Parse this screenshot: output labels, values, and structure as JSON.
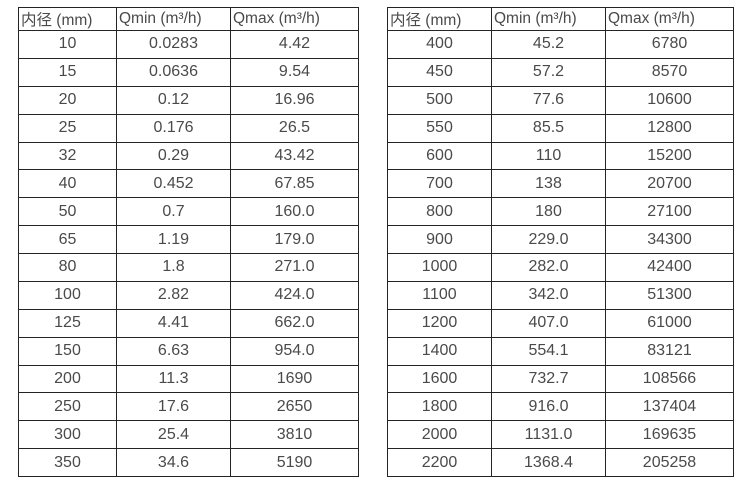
{
  "page": {
    "background_color": "#ffffff",
    "text_color": "#4a4a4a",
    "border_color": "#242424"
  },
  "tables": [
    {
      "name": "flow-rate-table-small-diameters",
      "headers": [
        "内径 (mm)",
        "Qmin (m³/h)",
        "Qmax (m³/h)"
      ],
      "rows": [
        [
          "10",
          "0.0283",
          "4.42"
        ],
        [
          "15",
          "0.0636",
          "9.54"
        ],
        [
          "20",
          "0.12",
          "16.96"
        ],
        [
          "25",
          "0.176",
          "26.5"
        ],
        [
          "32",
          "0.29",
          "43.42"
        ],
        [
          "40",
          "0.452",
          "67.85"
        ],
        [
          "50",
          "0.7",
          "160.0"
        ],
        [
          "65",
          "1.19",
          "179.0"
        ],
        [
          "80",
          "1.8",
          "271.0"
        ],
        [
          "100",
          "2.82",
          "424.0"
        ],
        [
          "125",
          "4.41",
          "662.0"
        ],
        [
          "150",
          "6.63",
          "954.0"
        ],
        [
          "200",
          "11.3",
          "1690"
        ],
        [
          "250",
          "17.6",
          "2650"
        ],
        [
          "300",
          "25.4",
          "3810"
        ],
        [
          "350",
          "34.6",
          "5190"
        ]
      ]
    },
    {
      "name": "flow-rate-table-large-diameters",
      "headers": [
        "内径 (mm)",
        "Qmin (m³/h)",
        "Qmax (m³/h)"
      ],
      "rows": [
        [
          "400",
          "45.2",
          "6780"
        ],
        [
          "450",
          "57.2",
          "8570"
        ],
        [
          "500",
          "77.6",
          "10600"
        ],
        [
          "550",
          "85.5",
          "12800"
        ],
        [
          "600",
          "110",
          "15200"
        ],
        [
          "700",
          "138",
          "20700"
        ],
        [
          "800",
          "180",
          "27100"
        ],
        [
          "900",
          "229.0",
          "34300"
        ],
        [
          "1000",
          "282.0",
          "42400"
        ],
        [
          "1100",
          "342.0",
          "51300"
        ],
        [
          "1200",
          "407.0",
          "61000"
        ],
        [
          "1400",
          "554.1",
          "83121"
        ],
        [
          "1600",
          "732.7",
          "108566"
        ],
        [
          "1800",
          "916.0",
          "137404"
        ],
        [
          "2000",
          "1131.0",
          "169635"
        ],
        [
          "2200",
          "1368.4",
          "205258"
        ]
      ]
    }
  ]
}
